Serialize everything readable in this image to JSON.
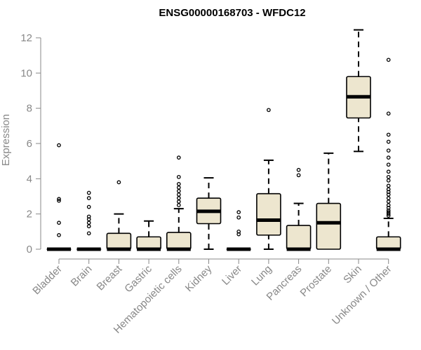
{
  "chart_data": {
    "type": "box",
    "title": "ENSG00000168703 - WFDC12",
    "ylabel": "Expression",
    "xlabel": "",
    "ylim": [
      0,
      12
    ],
    "yticks": [
      0,
      2,
      4,
      6,
      8,
      10,
      12
    ],
    "colors": {
      "box_fill": "#EDE6CF",
      "stroke": "#000000",
      "text": "#888888"
    },
    "categories": [
      "Bladder",
      "Brain",
      "Breast",
      "Gastric",
      "Hematopoietic cells",
      "Kidney",
      "Liver",
      "Lung",
      "Pancreas",
      "Prostate",
      "Skin",
      "Unknown / Other"
    ],
    "boxes": [
      {
        "min": 0,
        "q1": 0,
        "median": 0,
        "q3": 0,
        "max": 0,
        "outliers": [
          0.8,
          1.5,
          2.75,
          2.85,
          5.9
        ]
      },
      {
        "min": 0,
        "q1": 0,
        "median": 0,
        "q3": 0,
        "max": 0,
        "outliers": [
          0.9,
          1.3,
          1.5,
          1.7,
          1.85,
          2.4,
          2.9,
          3.2
        ]
      },
      {
        "min": 0,
        "q1": 0,
        "median": 0,
        "q3": 0.9,
        "max": 2.0,
        "outliers": [
          3.8
        ]
      },
      {
        "min": 0,
        "q1": 0,
        "median": 0,
        "q3": 0.7,
        "max": 1.6,
        "outliers": []
      },
      {
        "min": 0,
        "q1": 0,
        "median": 0,
        "q3": 0.95,
        "max": 2.3,
        "outliers": [
          2.5,
          2.7,
          2.9,
          3.1,
          3.3,
          3.5,
          3.7,
          4.1,
          5.2
        ]
      },
      {
        "min": 0,
        "q1": 1.45,
        "median": 2.15,
        "q3": 2.9,
        "max": 4.05,
        "outliers": []
      },
      {
        "min": 0,
        "q1": 0,
        "median": 0,
        "q3": 0,
        "max": 0,
        "outliers": [
          0.85,
          1.0,
          1.8,
          2.1
        ]
      },
      {
        "min": 0,
        "q1": 0.8,
        "median": 1.65,
        "q3": 3.15,
        "max": 5.05,
        "outliers": [
          7.9
        ]
      },
      {
        "min": 0,
        "q1": 0,
        "median": 0,
        "q3": 1.35,
        "max": 2.6,
        "outliers": [
          4.2,
          4.5
        ]
      },
      {
        "min": 0,
        "q1": 0,
        "median": 1.5,
        "q3": 2.6,
        "max": 5.45,
        "outliers": []
      },
      {
        "min": 5.55,
        "q1": 7.45,
        "median": 8.65,
        "q3": 9.8,
        "max": 12.45,
        "outliers": []
      },
      {
        "min": 0,
        "q1": 0,
        "median": 0,
        "q3": 0.7,
        "max": 1.75,
        "outliers": [
          1.9,
          2.0,
          2.1,
          2.2,
          2.35,
          2.5,
          2.7,
          2.9,
          3.1,
          3.25,
          3.4,
          3.6,
          3.9,
          4.1,
          4.4,
          4.8,
          5.2,
          5.6,
          6.1,
          6.5,
          7.7,
          10.75
        ]
      }
    ]
  }
}
